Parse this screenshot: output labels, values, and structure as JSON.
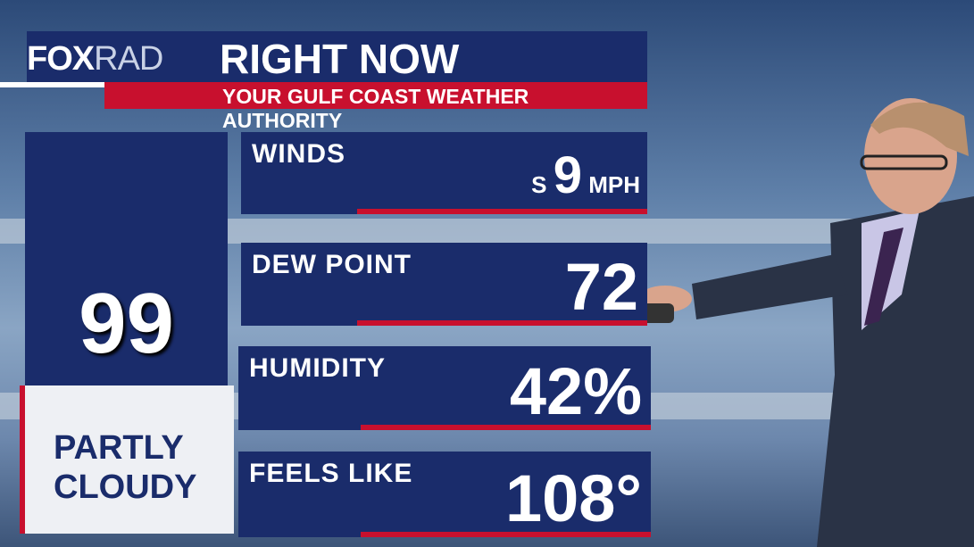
{
  "header": {
    "logo_fox": "FOX",
    "logo_rad": "RAD",
    "title": "RIGHT NOW",
    "subtitle": "YOUR GULF COAST WEATHER AUTHORITY"
  },
  "current": {
    "temperature": "99",
    "condition": [
      "PARTLY",
      "CLOUDY"
    ]
  },
  "rows": [
    {
      "label": "WINDS",
      "direction": "S",
      "value": "9",
      "unit": "MPH"
    },
    {
      "label": "DEW POINT",
      "value": "72"
    },
    {
      "label": "HUMIDITY",
      "value": "42%"
    },
    {
      "label": "FEELS LIKE",
      "value": "108°"
    }
  ]
}
